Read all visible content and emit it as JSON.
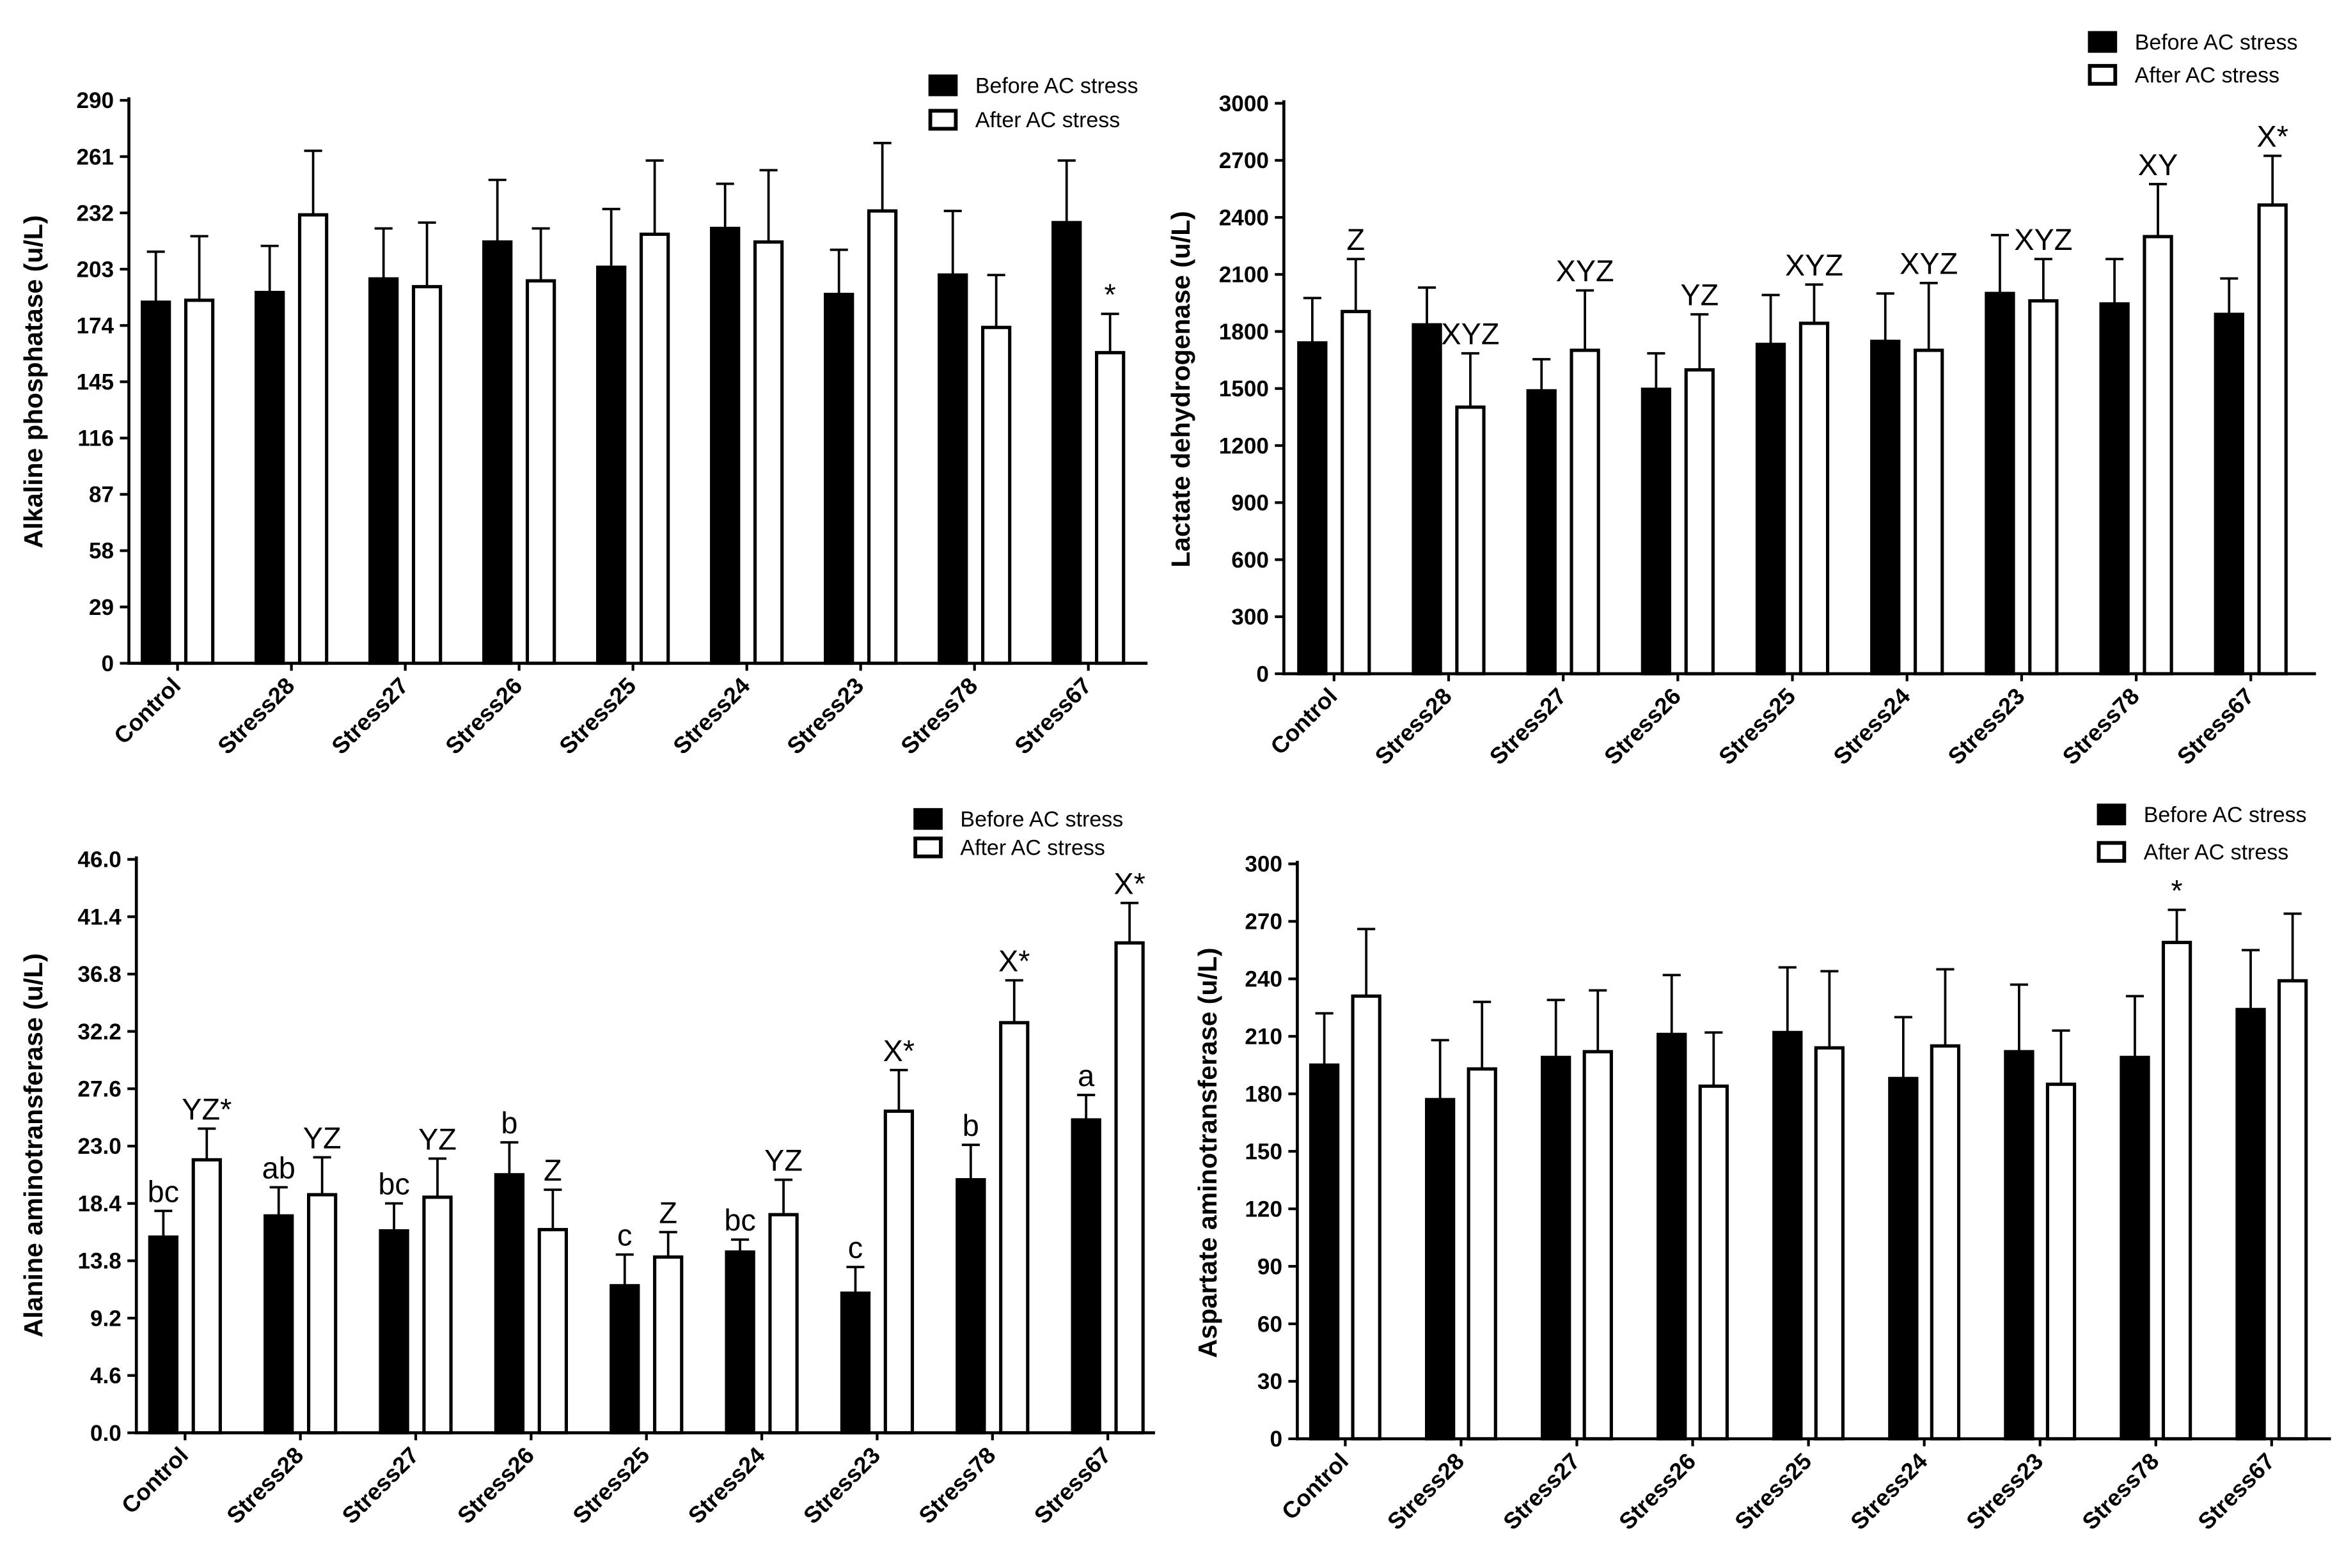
{
  "chart_data": [
    {
      "type": "bar",
      "title": "",
      "xlabel": "",
      "ylabel": "Alkaline phosphatase (u/L)",
      "ylim": [
        0,
        290
      ],
      "y_tick_labels": [
        "0",
        "29",
        "58",
        "87",
        "116",
        "145",
        "174",
        "203",
        "232",
        "261",
        "290"
      ],
      "categories": [
        "Control",
        "Stress28",
        "Stress27",
        "Stress26",
        "Stress25",
        "Stress24",
        "Stress23",
        "Stress78",
        "Stress67"
      ],
      "legend": "top-right",
      "series": [
        {
          "name": "Before AC stress",
          "color": "#000000",
          "values": [
            186,
            191,
            198,
            217,
            204,
            224,
            190,
            200,
            227
          ],
          "errors": [
            26,
            24,
            26,
            32,
            30,
            23,
            23,
            33,
            32
          ]
        },
        {
          "name": "After AC stress",
          "color": "#ffffff",
          "values": [
            187,
            231,
            194,
            197,
            221,
            217,
            233,
            173,
            160
          ],
          "errors": [
            33,
            33,
            33,
            27,
            38,
            37,
            35,
            27,
            20
          ]
        }
      ],
      "annotations": [
        {
          "group": 8,
          "series": 1,
          "text": "*"
        }
      ]
    },
    {
      "type": "bar",
      "title": "",
      "xlabel": "",
      "ylabel": "Lactate dehydrogenase (u/L)",
      "ylim": [
        0,
        3000
      ],
      "y_tick_labels": [
        "0",
        "300",
        "600",
        "900",
        "1200",
        "1500",
        "1800",
        "2100",
        "2400",
        "2700",
        "3000"
      ],
      "categories": [
        "Control",
        "Stress28",
        "Stress27",
        "Stress26",
        "Stress25",
        "Stress24",
        "Stress23",
        "Stress78",
        "Stress67"
      ],
      "legend": "top-right",
      "series": [
        {
          "name": "Before AC stress",
          "color": "#000000",
          "values": [
            1740,
            1835,
            1488,
            1496,
            1732,
            1748,
            2000,
            1945,
            1890
          ],
          "errors": [
            236,
            196,
            166,
            189,
            260,
            252,
            307,
            236,
            189
          ]
        },
        {
          "name": "After AC stress",
          "color": "#ffffff",
          "values": [
            1905,
            1402,
            1701,
            1598,
            1843,
            1701,
            1961,
            2299,
            2465
          ],
          "errors": [
            276,
            283,
            315,
            292,
            204,
            354,
            220,
            276,
            259
          ]
        }
      ],
      "annotations": [
        {
          "group": 0,
          "series": 1,
          "text": "Z"
        },
        {
          "group": 1,
          "series": 1,
          "text": "XYZ"
        },
        {
          "group": 2,
          "series": 1,
          "text": "XYZ"
        },
        {
          "group": 3,
          "series": 1,
          "text": "YZ"
        },
        {
          "group": 4,
          "series": 1,
          "text": "XYZ"
        },
        {
          "group": 5,
          "series": 1,
          "text": "XYZ"
        },
        {
          "group": 6,
          "series": 1,
          "text": "XYZ"
        },
        {
          "group": 7,
          "series": 1,
          "text": "XY"
        },
        {
          "group": 8,
          "series": 1,
          "text": "X*"
        }
      ]
    },
    {
      "type": "bar",
      "title": "",
      "xlabel": "",
      "ylabel": "Alanine aminotransferase (u/L)",
      "ylim": [
        0,
        46
      ],
      "y_tick_labels": [
        "0.0",
        "4.6",
        "9.2",
        "13.8",
        "18.4",
        "23.0",
        "27.6",
        "32.2",
        "36.8",
        "41.4",
        "46.0"
      ],
      "categories": [
        "Control",
        "Stress28",
        "Stress27",
        "Stress26",
        "Stress25",
        "Stress24",
        "Stress23",
        "Stress78",
        "Stress67"
      ],
      "legend": "top-right",
      "series": [
        {
          "name": "Before AC stress",
          "color": "#000000",
          "values": [
            15.7,
            17.4,
            16.2,
            20.7,
            11.8,
            14.5,
            11.2,
            20.3,
            25.1
          ],
          "errors": [
            2.1,
            2.3,
            2.2,
            2.6,
            2.5,
            1.0,
            2.1,
            2.8,
            2.0
          ]
        },
        {
          "name": "After AC stress",
          "color": "#ffffff",
          "values": [
            21.9,
            19.1,
            18.9,
            16.3,
            14.1,
            17.5,
            25.8,
            32.9,
            39.3
          ],
          "errors": [
            2.5,
            3.0,
            3.1,
            3.2,
            2.0,
            2.8,
            3.3,
            3.4,
            3.2
          ]
        }
      ],
      "annotations": [
        {
          "group": 0,
          "series": 0,
          "text": "bc"
        },
        {
          "group": 1,
          "series": 0,
          "text": "ab"
        },
        {
          "group": 2,
          "series": 0,
          "text": "bc"
        },
        {
          "group": 3,
          "series": 0,
          "text": "b"
        },
        {
          "group": 4,
          "series": 0,
          "text": "c"
        },
        {
          "group": 5,
          "series": 0,
          "text": "bc"
        },
        {
          "group": 6,
          "series": 0,
          "text": "c"
        },
        {
          "group": 7,
          "series": 0,
          "text": "b"
        },
        {
          "group": 8,
          "series": 0,
          "text": "a"
        },
        {
          "group": 0,
          "series": 1,
          "text": "YZ*"
        },
        {
          "group": 1,
          "series": 1,
          "text": "YZ"
        },
        {
          "group": 2,
          "series": 1,
          "text": "YZ"
        },
        {
          "group": 3,
          "series": 1,
          "text": "Z"
        },
        {
          "group": 4,
          "series": 1,
          "text": "Z"
        },
        {
          "group": 5,
          "series": 1,
          "text": "YZ"
        },
        {
          "group": 6,
          "series": 1,
          "text": "X*"
        },
        {
          "group": 7,
          "series": 1,
          "text": "X*"
        },
        {
          "group": 8,
          "series": 1,
          "text": "X*"
        }
      ]
    },
    {
      "type": "bar",
      "title": "",
      "xlabel": "",
      "ylabel": "Aspartate aminotransferase (u/L)",
      "ylim": [
        0,
        300
      ],
      "y_tick_labels": [
        "0",
        "30",
        "60",
        "90",
        "120",
        "150",
        "180",
        "210",
        "240",
        "270",
        "300"
      ],
      "categories": [
        "Control",
        "Stress28",
        "Stress27",
        "Stress26",
        "Stress25",
        "Stress24",
        "Stress23",
        "Stress78",
        "Stress67"
      ],
      "legend": "top-right",
      "series": [
        {
          "name": "Before AC stress",
          "color": "#000000",
          "values": [
            195,
            177,
            199,
            211,
            212,
            188,
            202,
            199,
            224
          ],
          "errors": [
            27,
            31,
            30,
            31,
            34,
            32,
            35,
            32,
            31
          ]
        },
        {
          "name": "After AC stress",
          "color": "#ffffff",
          "values": [
            231,
            193,
            202,
            184,
            204,
            205,
            185,
            259,
            239
          ],
          "errors": [
            35,
            35,
            32,
            28,
            40,
            40,
            28,
            17,
            35
          ]
        }
      ],
      "annotations": [
        {
          "group": 7,
          "series": 1,
          "text": "*"
        }
      ]
    }
  ]
}
